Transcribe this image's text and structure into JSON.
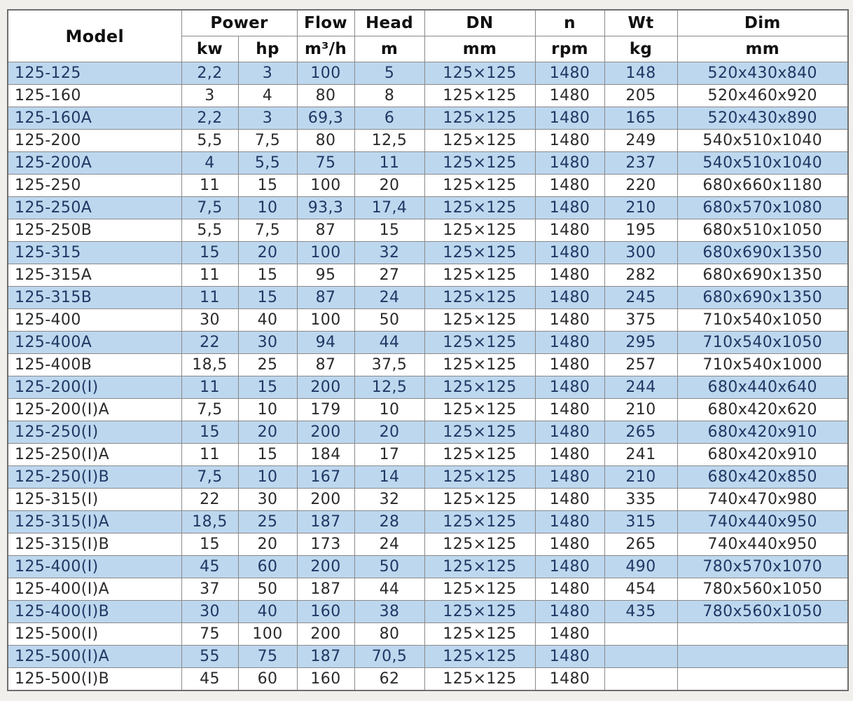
{
  "table": {
    "header": {
      "model": "Model",
      "power": "Power",
      "flow": "Flow",
      "head": "Head",
      "dn": "DN",
      "n": "n",
      "wt": "Wt",
      "dim": "Dim"
    },
    "units": {
      "kw": "kw",
      "hp": "hp",
      "flow": "m³/h",
      "head": "m",
      "dn": "mm",
      "n": "rpm",
      "wt": "kg",
      "dim": "mm"
    },
    "colors": {
      "alt_row_bg": "#bdd7ee",
      "alt_row_text": "#1f3864",
      "row_text": "#2b2b2b",
      "border": "#8a8a8a",
      "outer_border": "#6e6e6e",
      "page_bg": "#f1efec"
    },
    "rows": [
      [
        "125-125",
        "2,2",
        "3",
        "100",
        "5",
        "125×125",
        "1480",
        "148",
        "520x430x840"
      ],
      [
        "125-160",
        "3",
        "4",
        "80",
        "8",
        "125×125",
        "1480",
        "205",
        "520x460x920"
      ],
      [
        "125-160A",
        "2,2",
        "3",
        "69,3",
        "6",
        "125×125",
        "1480",
        "165",
        "520x430x890"
      ],
      [
        "125-200",
        "5,5",
        "7,5",
        "80",
        "12,5",
        "125×125",
        "1480",
        "249",
        "540x510x1040"
      ],
      [
        "125-200A",
        "4",
        "5,5",
        "75",
        "11",
        "125×125",
        "1480",
        "237",
        "540x510x1040"
      ],
      [
        "125-250",
        "11",
        "15",
        "100",
        "20",
        "125×125",
        "1480",
        "220",
        "680x660x1180"
      ],
      [
        "125-250A",
        "7,5",
        "10",
        "93,3",
        "17,4",
        "125×125",
        "1480",
        "210",
        "680x570x1080"
      ],
      [
        "125-250B",
        "5,5",
        "7,5",
        "87",
        "15",
        "125×125",
        "1480",
        "195",
        "680x510x1050"
      ],
      [
        "125-315",
        "15",
        "20",
        "100",
        "32",
        "125×125",
        "1480",
        "300",
        "680x690x1350"
      ],
      [
        "125-315A",
        "11",
        "15",
        "95",
        "27",
        "125×125",
        "1480",
        "282",
        "680x690x1350"
      ],
      [
        "125-315B",
        "11",
        "15",
        "87",
        "24",
        "125×125",
        "1480",
        "245",
        "680x690x1350"
      ],
      [
        "125-400",
        "30",
        "40",
        "100",
        "50",
        "125×125",
        "1480",
        "375",
        "710x540x1050"
      ],
      [
        "125-400A",
        "22",
        "30",
        "94",
        "44",
        "125×125",
        "1480",
        "295",
        "710x540x1050"
      ],
      [
        "125-400B",
        "18,5",
        "25",
        "87",
        "37,5",
        "125×125",
        "1480",
        "257",
        "710x540x1000"
      ],
      [
        "125-200(I)",
        "11",
        "15",
        "200",
        "12,5",
        "125×125",
        "1480",
        "244",
        "680x440x640"
      ],
      [
        "125-200(I)A",
        "7,5",
        "10",
        "179",
        "10",
        "125×125",
        "1480",
        "210",
        "680x420x620"
      ],
      [
        "125-250(I)",
        "15",
        "20",
        "200",
        "20",
        "125×125",
        "1480",
        "265",
        "680x420x910"
      ],
      [
        "125-250(I)A",
        "11",
        "15",
        "184",
        "17",
        "125×125",
        "1480",
        "241",
        "680x420x910"
      ],
      [
        "125-250(I)B",
        "7,5",
        "10",
        "167",
        "14",
        "125×125",
        "1480",
        "210",
        "680x420x850"
      ],
      [
        "125-315(I)",
        "22",
        "30",
        "200",
        "32",
        "125×125",
        "1480",
        "335",
        "740x470x980"
      ],
      [
        "125-315(I)A",
        "18,5",
        "25",
        "187",
        "28",
        "125×125",
        "1480",
        "315",
        "740x440x950"
      ],
      [
        "125-315(I)B",
        "15",
        "20",
        "173",
        "24",
        "125×125",
        "1480",
        "265",
        "740x440x950"
      ],
      [
        "125-400(I)",
        "45",
        "60",
        "200",
        "50",
        "125×125",
        "1480",
        "490",
        "780x570x1070"
      ],
      [
        "125-400(I)A",
        "37",
        "50",
        "187",
        "44",
        "125×125",
        "1480",
        "454",
        "780x560x1050"
      ],
      [
        "125-400(I)B",
        "30",
        "40",
        "160",
        "38",
        "125×125",
        "1480",
        "435",
        "780x560x1050"
      ],
      [
        "125-500(I)",
        "75",
        "100",
        "200",
        "80",
        "125×125",
        "1480",
        "",
        ""
      ],
      [
        "125-500(I)A",
        "55",
        "75",
        "187",
        "70,5",
        "125×125",
        "1480",
        "",
        ""
      ],
      [
        "125-500(I)B",
        "45",
        "60",
        "160",
        "62",
        "125×125",
        "1480",
        "",
        ""
      ]
    ]
  }
}
